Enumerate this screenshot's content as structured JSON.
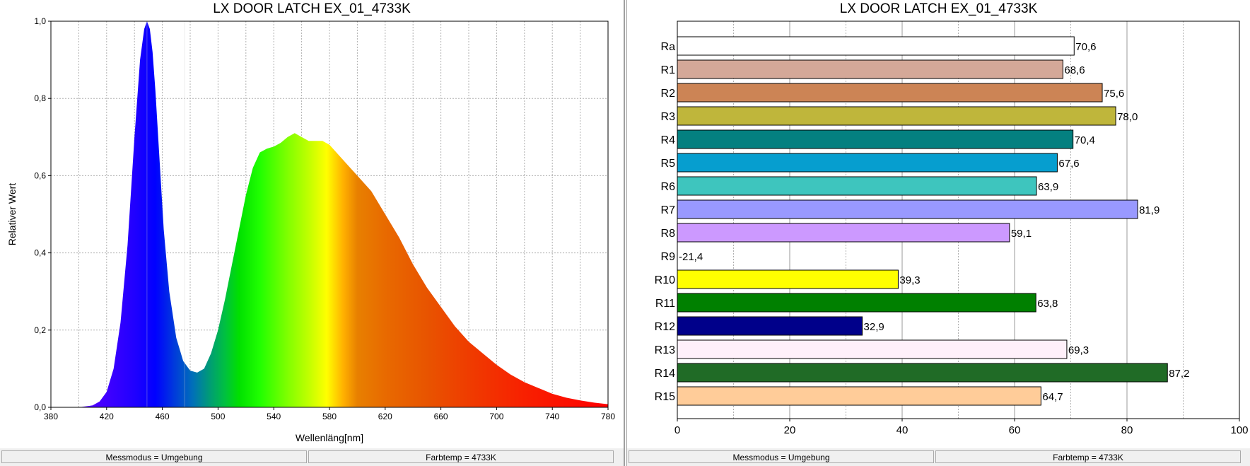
{
  "spectrum_panel": {
    "status": {
      "mode": "Messmodus = Umgebung",
      "cct": "Farbtemp = 4733K"
    }
  },
  "cri_panel": {
    "status": {
      "mode": "Messmodus = Umgebung",
      "cct": "Farbtemp = 4733K"
    }
  },
  "chart_data": [
    {
      "type": "area",
      "title": "LX DOOR LATCH EX_01_4733K",
      "xlabel": "Wellenläng[nm]",
      "ylabel": "Relativer Wert",
      "xlim": [
        380,
        780
      ],
      "ylim": [
        0,
        1.0
      ],
      "x_ticks": [
        380,
        420,
        460,
        500,
        540,
        580,
        620,
        660,
        700,
        740,
        780
      ],
      "y_ticks": [
        0.0,
        0.2,
        0.4,
        0.6,
        0.8,
        1.0
      ],
      "y_tick_labels": [
        "0,0",
        "0,2",
        "0,4",
        "0,6",
        "0,8",
        "1,0"
      ],
      "grid": true,
      "fill": "spectral-rainbow",
      "x": [
        400,
        410,
        415,
        420,
        425,
        430,
        435,
        440,
        444,
        447,
        449,
        451,
        453,
        455,
        458,
        461,
        465,
        470,
        475,
        480,
        485,
        490,
        495,
        500,
        505,
        510,
        515,
        520,
        525,
        530,
        535,
        540,
        545,
        550,
        555,
        560,
        565,
        570,
        575,
        580,
        585,
        590,
        595,
        600,
        610,
        620,
        630,
        640,
        650,
        660,
        670,
        680,
        690,
        700,
        710,
        720,
        730,
        740,
        750,
        760,
        770,
        780
      ],
      "y": [
        0.0,
        0.005,
        0.015,
        0.04,
        0.1,
        0.22,
        0.42,
        0.7,
        0.9,
        0.98,
        1.0,
        0.98,
        0.92,
        0.82,
        0.64,
        0.46,
        0.3,
        0.18,
        0.12,
        0.095,
        0.09,
        0.1,
        0.14,
        0.2,
        0.28,
        0.37,
        0.46,
        0.55,
        0.62,
        0.66,
        0.67,
        0.675,
        0.685,
        0.7,
        0.71,
        0.7,
        0.69,
        0.69,
        0.69,
        0.68,
        0.66,
        0.64,
        0.62,
        0.6,
        0.56,
        0.5,
        0.44,
        0.37,
        0.31,
        0.26,
        0.21,
        0.17,
        0.14,
        0.11,
        0.085,
        0.065,
        0.05,
        0.035,
        0.025,
        0.018,
        0.012,
        0.008
      ]
    },
    {
      "type": "bar",
      "orientation": "horizontal",
      "title": "LX DOOR LATCH EX_01_4733K",
      "xlim": [
        0,
        100
      ],
      "x_ticks": [
        0,
        20,
        40,
        60,
        80,
        100
      ],
      "grid": true,
      "categories": [
        "Ra",
        "R1",
        "R2",
        "R3",
        "R4",
        "R5",
        "R6",
        "R7",
        "R8",
        "R9",
        "R10",
        "R11",
        "R12",
        "R13",
        "R14",
        "R15"
      ],
      "values": [
        70.6,
        68.6,
        75.6,
        78.0,
        70.4,
        67.6,
        63.9,
        81.9,
        59.1,
        -21.4,
        39.3,
        63.8,
        32.9,
        69.3,
        87.2,
        64.7
      ],
      "value_labels": [
        "70,6",
        "68,6",
        "75,6",
        "78,0",
        "70,4",
        "67,6",
        "63,9",
        "81,9",
        "59,1",
        "-21,4",
        "39,3",
        "63,8",
        "32,9",
        "69,3",
        "87,2",
        "64,7"
      ],
      "colors": [
        "#ffffff",
        "#d4a898",
        "#cc8455",
        "#bfb63b",
        "#048080",
        "#069ecf",
        "#3ec5be",
        "#9999ff",
        "#cc99ff",
        "#ff0000",
        "#ffff00",
        "#008000",
        "#00008a",
        "#fff0fa",
        "#206b26",
        "#ffcc99"
      ]
    }
  ]
}
